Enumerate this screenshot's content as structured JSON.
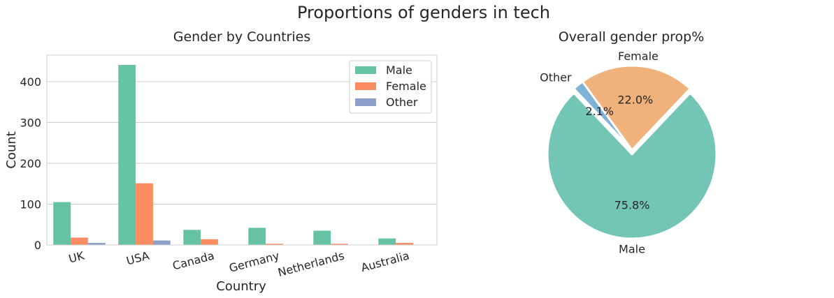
{
  "suptitle": "Proportions of genders in tech",
  "chart_data": [
    {
      "type": "bar",
      "title": "Gender by Countries",
      "xlabel": "Country",
      "ylabel": "Count",
      "ylim": [
        0,
        465
      ],
      "yticks": [
        0,
        100,
        200,
        300,
        400
      ],
      "categories": [
        "UK",
        "USA",
        "Canada",
        "Germany",
        "Netherlands",
        "Australia"
      ],
      "grid": true,
      "legend_position": "top-right",
      "series": [
        {
          "name": "Male",
          "color": "#66c2a5",
          "values": [
            105,
            441,
            37,
            42,
            35,
            16
          ]
        },
        {
          "name": "Female",
          "color": "#fc8d62",
          "values": [
            18,
            151,
            14,
            3,
            3,
            5
          ]
        },
        {
          "name": "Other",
          "color": "#8da0cb",
          "values": [
            5,
            11,
            0,
            0,
            0,
            0
          ]
        }
      ]
    },
    {
      "type": "pie",
      "title": "Overall gender prop%",
      "slices": [
        {
          "label": "Male",
          "value": 75.8,
          "pct_label": "75.8%",
          "color": "#73c6b6"
        },
        {
          "label": "Female",
          "value": 22.0,
          "pct_label": "22.0%",
          "color": "#f0b27a"
        },
        {
          "label": "Other",
          "value": 2.1,
          "pct_label": "2.1%",
          "color": "#7fb3d5"
        }
      ],
      "explode": "Male"
    }
  ]
}
